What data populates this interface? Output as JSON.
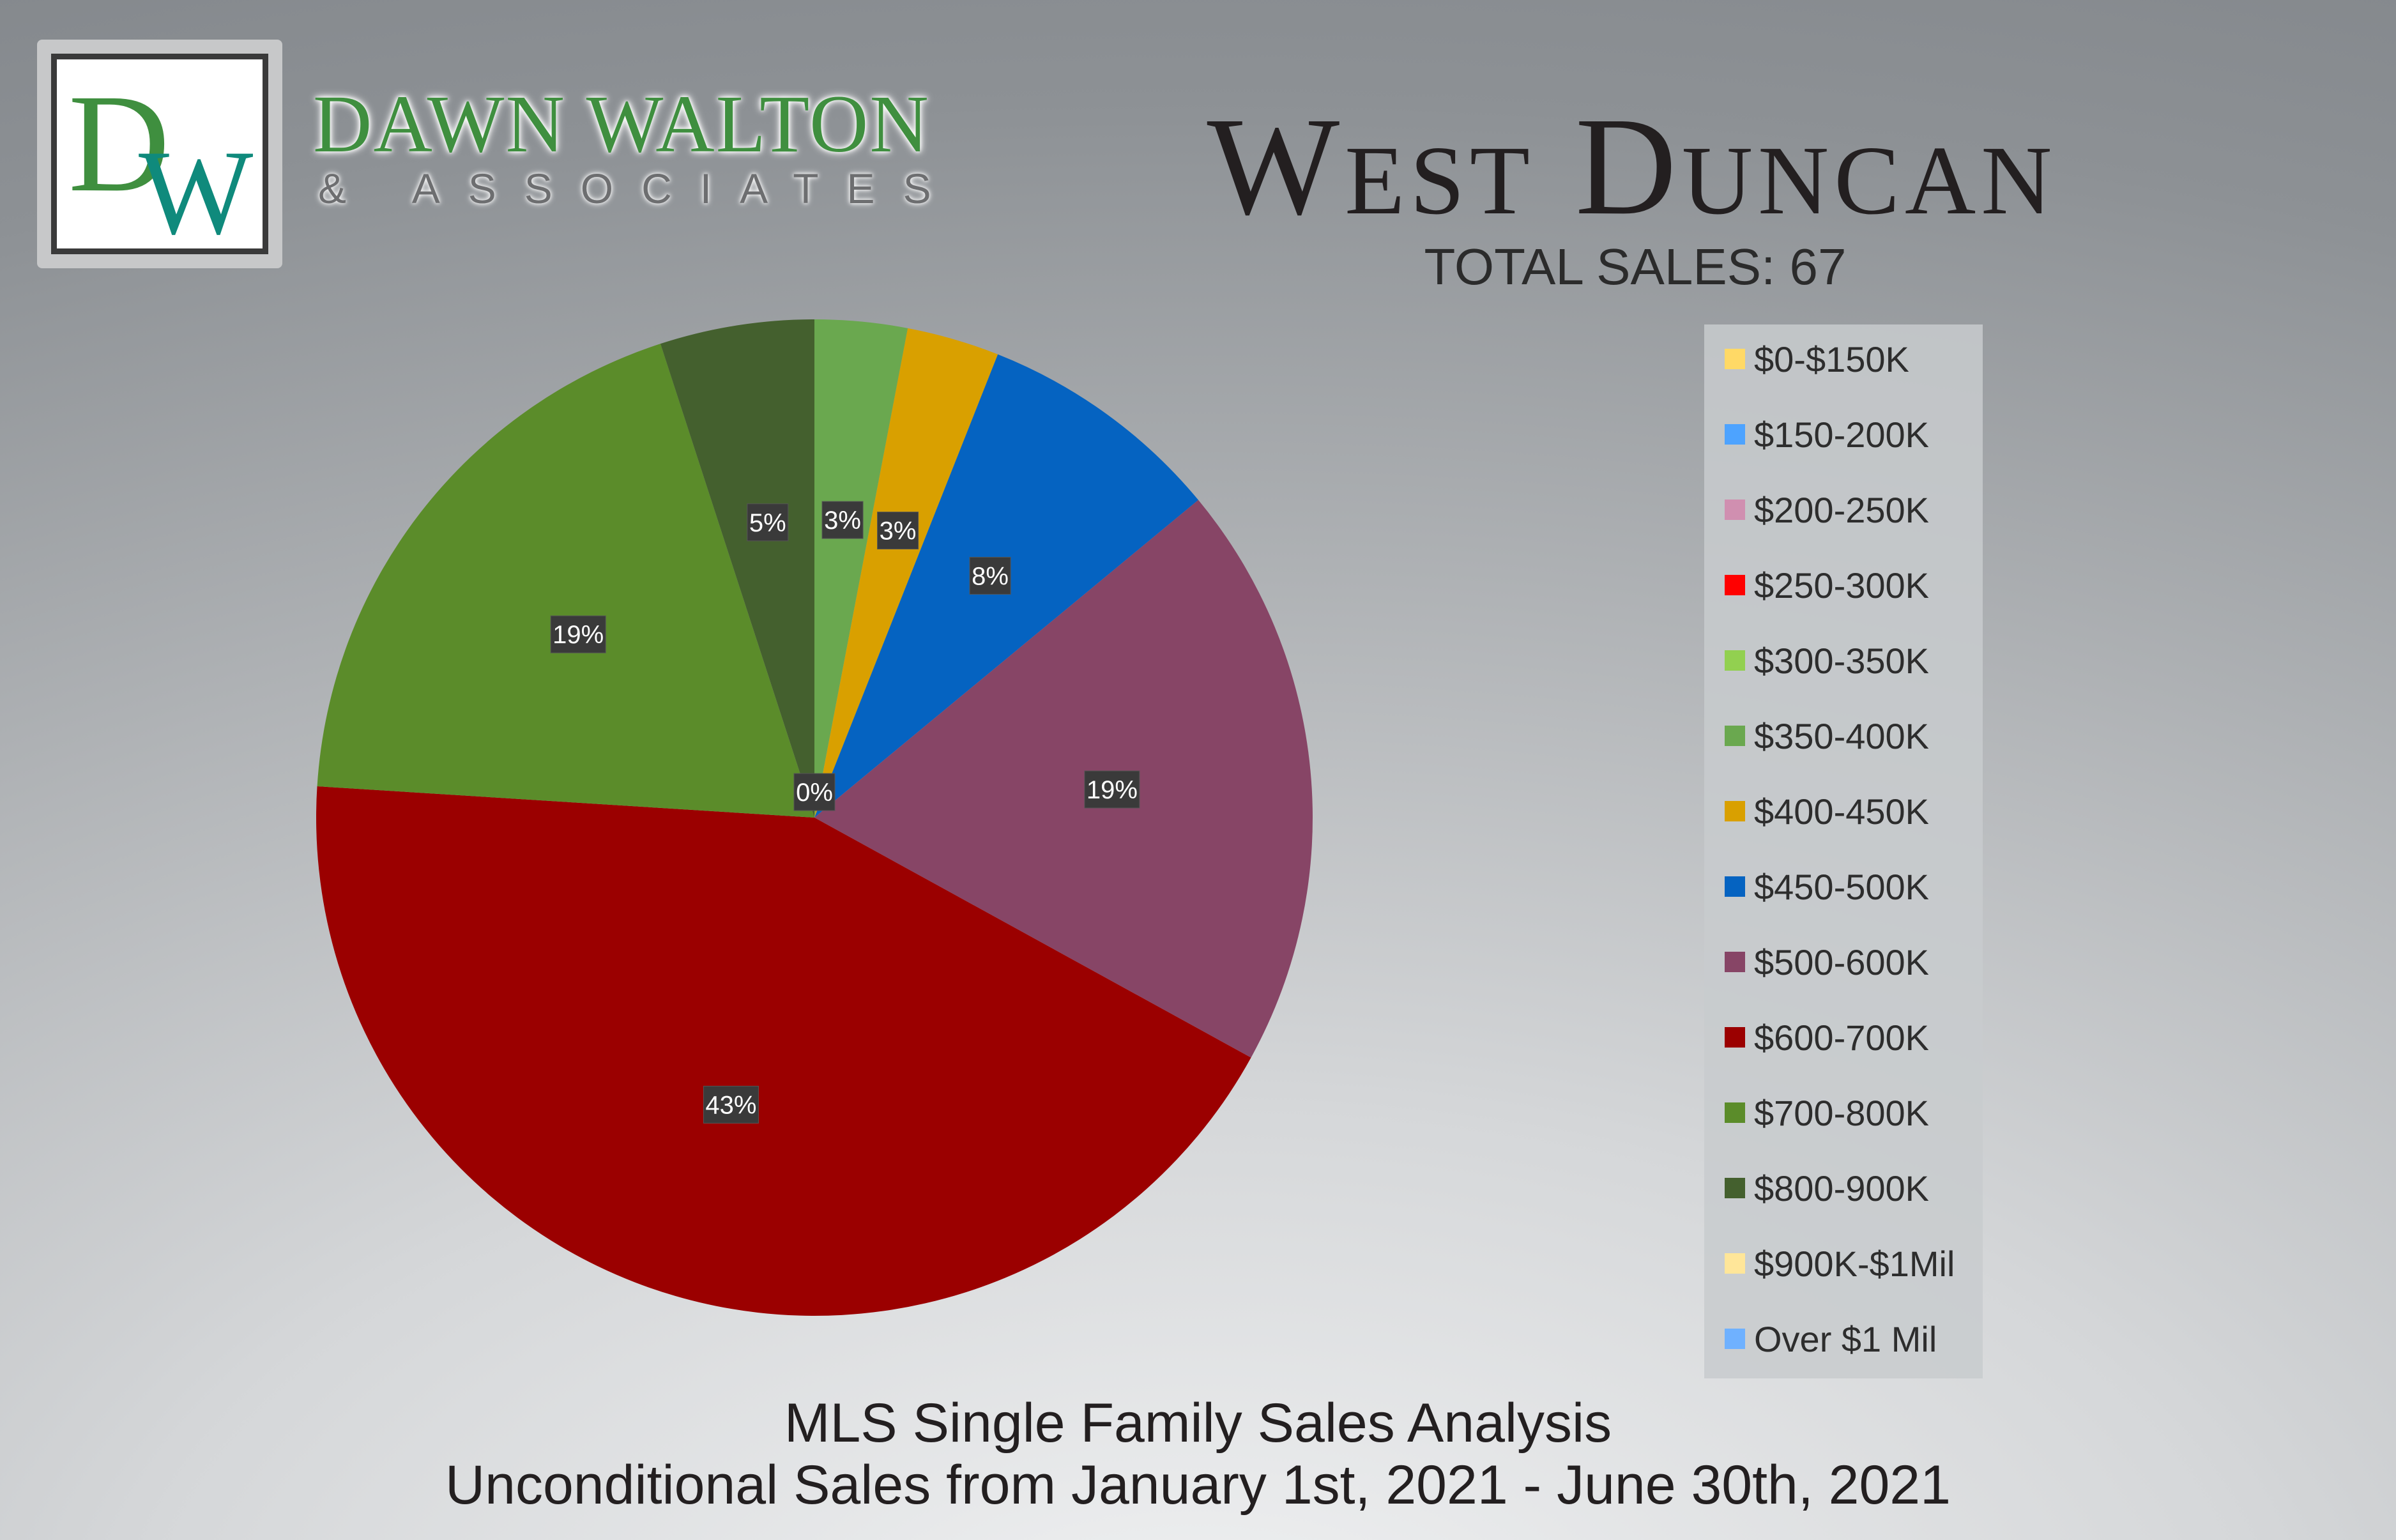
{
  "branding": {
    "logo_letters": "DW",
    "firm_name": "DAWN WALTON",
    "firm_sub": "& ASSOCIATES",
    "colors": {
      "green": "#3f8f3f",
      "teal": "#0f8a7c"
    }
  },
  "header": {
    "title": "West Duncan",
    "total_sales": "TOTAL SALES: 67"
  },
  "chart_data": {
    "type": "pie",
    "title": "West Duncan",
    "categories": [
      "$0-$150K",
      "$150-200K",
      "$200-250K",
      "$250-300K",
      "$300-350K",
      "$350-400K",
      "$400-450K",
      "$450-500K",
      "$500-600K",
      "$600-700K",
      "$700-800K",
      "$800-900K",
      "$900K-$1Mil",
      "Over $1 Mil"
    ],
    "values": [
      0,
      0,
      0,
      0,
      0,
      3,
      3,
      8,
      19,
      43,
      19,
      5,
      0,
      0
    ],
    "labels": [
      "0%",
      "0%",
      "0%",
      "0%",
      "0%",
      "3%",
      "3%",
      "8%",
      "19%",
      "43%",
      "19%",
      "5%",
      "0%",
      "0%"
    ],
    "colors": [
      "#ffd966",
      "#4da3ff",
      "#d08fb0",
      "#ff0000",
      "#92d050",
      "#6aa84f",
      "#d9a000",
      "#0563c1",
      "#874566",
      "#9b0000",
      "#5b8c2a",
      "#44602e",
      "#ffe699",
      "#6fb1ff"
    ],
    "legend_position": "right",
    "grid": false
  },
  "legend": {
    "items": [
      "$0-$150K",
      "$150-200K",
      "$200-250K",
      "$250-300K",
      "$300-350K",
      "$350-400K",
      "$400-450K",
      "$450-500K",
      "$500-600K",
      "$600-700K",
      "$700-800K",
      "$800-900K",
      "$900K-$1Mil",
      "Over $1 Mil"
    ]
  },
  "footer": {
    "line1": "MLS Single Family Sales Analysis",
    "line2": "Unconditional Sales from January 1st, 2021 - June 30th, 2021"
  }
}
